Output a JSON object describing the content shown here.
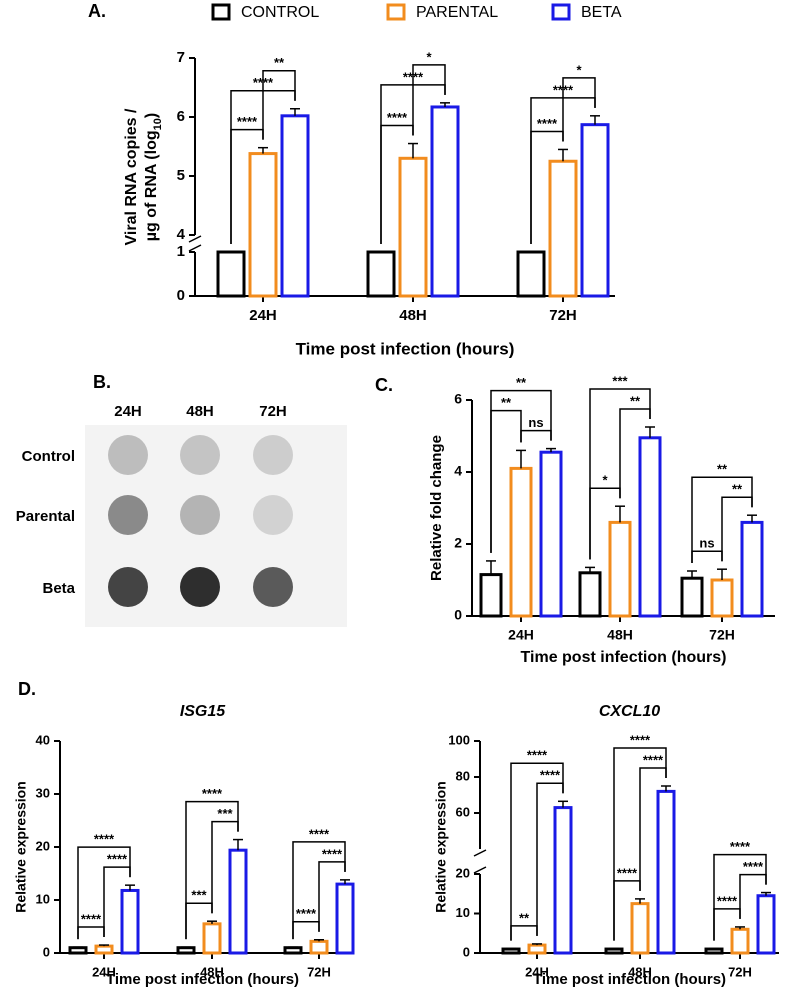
{
  "chart_data": [
    {
      "type": "bar",
      "label": "A.",
      "ylabel": [
        "Viral RNA copies /",
        "µg of RNA (log",
        "10",
        ")"
      ],
      "xlabel": "Time post infection (hours)",
      "categories": [
        "24H",
        "48H",
        "72H"
      ],
      "series": [
        {
          "name": "CONTROL",
          "color": "#000000",
          "values": [
            1,
            1,
            1
          ],
          "errors": [
            0,
            0,
            0
          ]
        },
        {
          "name": "PARENTAL",
          "color": "#f28c1e",
          "values": [
            5.38,
            5.3,
            5.25
          ],
          "errors": [
            0.1,
            0.25,
            0.2
          ]
        },
        {
          "name": "BETA",
          "color": "#1a1ae6",
          "values": [
            6.02,
            6.17,
            5.87
          ],
          "errors": [
            0.12,
            0.07,
            0.15
          ]
        }
      ],
      "ylim": [
        0,
        7
      ],
      "yticks": [
        0,
        1,
        4,
        5,
        6,
        7
      ],
      "axis_break": [
        1,
        4
      ],
      "legend": "top",
      "annotations": [
        {
          "group": 0,
          "from": 0,
          "to": 1,
          "label": "****"
        },
        {
          "group": 0,
          "from": 0,
          "to": 2,
          "label": "****"
        },
        {
          "group": 0,
          "from": 1,
          "to": 2,
          "label": "**"
        },
        {
          "group": 1,
          "from": 0,
          "to": 1,
          "label": "****"
        },
        {
          "group": 1,
          "from": 0,
          "to": 2,
          "label": "****"
        },
        {
          "group": 1,
          "from": 1,
          "to": 2,
          "label": "*"
        },
        {
          "group": 2,
          "from": 0,
          "to": 1,
          "label": "****"
        },
        {
          "group": 2,
          "from": 0,
          "to": 2,
          "label": "****"
        },
        {
          "group": 2,
          "from": 1,
          "to": 2,
          "label": "*"
        }
      ]
    },
    {
      "type": "bar",
      "label": "C.",
      "ylabel": "Relative fold change",
      "xlabel": "Time post infection (hours)",
      "categories": [
        "24H",
        "48H",
        "72H"
      ],
      "series": [
        {
          "color": "#000000",
          "values": [
            1.15,
            1.2,
            1.05
          ],
          "errors": [
            0.38,
            0.15,
            0.2
          ]
        },
        {
          "color": "#f28c1e",
          "values": [
            4.1,
            2.6,
            1.0
          ],
          "errors": [
            0.5,
            0.45,
            0.3
          ]
        },
        {
          "color": "#1a1ae6",
          "values": [
            4.55,
            4.95,
            2.6
          ],
          "errors": [
            0.1,
            0.3,
            0.2
          ]
        }
      ],
      "ylim": [
        0,
        6
      ],
      "yticks": [
        0,
        2,
        4,
        6
      ],
      "annotations": [
        {
          "group": 0,
          "from": 1,
          "to": 2,
          "label": "ns"
        },
        {
          "group": 0,
          "from": 0,
          "to": 1,
          "label": "**"
        },
        {
          "group": 0,
          "from": 0,
          "to": 2,
          "label": "**"
        },
        {
          "group": 1,
          "from": 0,
          "to": 1,
          "label": "*"
        },
        {
          "group": 1,
          "from": 1,
          "to": 2,
          "label": "**"
        },
        {
          "group": 1,
          "from": 0,
          "to": 2,
          "label": "***"
        },
        {
          "group": 2,
          "from": 0,
          "to": 1,
          "label": "ns"
        },
        {
          "group": 2,
          "from": 1,
          "to": 2,
          "label": "**"
        },
        {
          "group": 2,
          "from": 0,
          "to": 2,
          "label": "**"
        }
      ]
    },
    {
      "type": "bar",
      "label": "D.",
      "title": "ISG15",
      "ylabel": "Relative expression",
      "xlabel": "Time post infection (hours)",
      "categories": [
        "24H",
        "48H",
        "72H"
      ],
      "series": [
        {
          "color": "#000000",
          "values": [
            1,
            1,
            1
          ],
          "errors": [
            0.1,
            0.1,
            0.1
          ]
        },
        {
          "color": "#f28c1e",
          "values": [
            1.3,
            5.5,
            2.2
          ],
          "errors": [
            0.2,
            0.5,
            0.3
          ]
        },
        {
          "color": "#1a1ae6",
          "values": [
            11.8,
            19.4,
            13
          ],
          "errors": [
            1,
            2,
            0.8
          ]
        }
      ],
      "ylim": [
        0,
        40
      ],
      "yticks": [
        0,
        10,
        20,
        30,
        40
      ],
      "annotations": [
        {
          "group": 0,
          "from": 0,
          "to": 1,
          "label": "****"
        },
        {
          "group": 0,
          "from": 1,
          "to": 2,
          "label": "****"
        },
        {
          "group": 0,
          "from": 0,
          "to": 2,
          "label": "****"
        },
        {
          "group": 1,
          "from": 0,
          "to": 1,
          "label": "***"
        },
        {
          "group": 1,
          "from": 1,
          "to": 2,
          "label": "***"
        },
        {
          "group": 1,
          "from": 0,
          "to": 2,
          "label": "****"
        },
        {
          "group": 2,
          "from": 0,
          "to": 1,
          "label": "****"
        },
        {
          "group": 2,
          "from": 1,
          "to": 2,
          "label": "****"
        },
        {
          "group": 2,
          "from": 0,
          "to": 2,
          "label": "****"
        }
      ]
    },
    {
      "type": "bar",
      "title": "CXCL10",
      "ylabel": "Relative expression",
      "xlabel": "Time post infection (hours)",
      "categories": [
        "24H",
        "48H",
        "72H"
      ],
      "series": [
        {
          "color": "#000000",
          "values": [
            1,
            1,
            1
          ],
          "errors": [
            0.1,
            0.1,
            0.1
          ]
        },
        {
          "color": "#f28c1e",
          "values": [
            2,
            12.5,
            6
          ],
          "errors": [
            0.3,
            1.2,
            0.6
          ]
        },
        {
          "color": "#1a1ae6",
          "values": [
            63,
            72,
            14.5
          ],
          "errors": [
            3.5,
            3,
            0.8
          ]
        }
      ],
      "ylim": [
        0,
        100
      ],
      "yticks": [
        0,
        10,
        20,
        60,
        80,
        100
      ],
      "axis_break": [
        20,
        40
      ],
      "annotations": [
        {
          "group": 0,
          "from": 0,
          "to": 1,
          "label": "**"
        },
        {
          "group": 0,
          "from": 1,
          "to": 2,
          "label": "****"
        },
        {
          "group": 0,
          "from": 0,
          "to": 2,
          "label": "****"
        },
        {
          "group": 1,
          "from": 0,
          "to": 1,
          "label": "****"
        },
        {
          "group": 1,
          "from": 1,
          "to": 2,
          "label": "****"
        },
        {
          "group": 1,
          "from": 0,
          "to": 2,
          "label": "****"
        },
        {
          "group": 2,
          "from": 0,
          "to": 1,
          "label": "****"
        },
        {
          "group": 2,
          "from": 1,
          "to": 2,
          "label": "****"
        },
        {
          "group": 2,
          "from": 0,
          "to": 2,
          "label": "****"
        }
      ]
    }
  ],
  "blot": {
    "label": "B.",
    "columns": [
      "24H",
      "48H",
      "72H"
    ],
    "rows": [
      "Control",
      "Parental",
      "Beta"
    ]
  }
}
